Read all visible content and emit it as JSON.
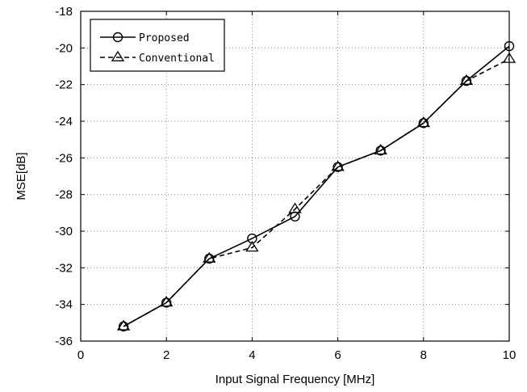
{
  "chart_data": {
    "type": "line",
    "title": "",
    "xlabel": "Input Signal Frequency [MHz]",
    "ylabel": "MSE[dB]",
    "xlim": [
      0,
      10
    ],
    "ylim": [
      -36,
      -18
    ],
    "xticks": [
      0,
      2,
      4,
      6,
      8,
      10
    ],
    "yticks": [
      -36,
      -34,
      -32,
      -30,
      -28,
      -26,
      -24,
      -22,
      -20,
      -18
    ],
    "grid": true,
    "legend_position": "top-left",
    "x": [
      1,
      2,
      3,
      4,
      5,
      6,
      7,
      8,
      9,
      10
    ],
    "series": [
      {
        "name": "Proposed",
        "values": [
          -35.2,
          -33.9,
          -31.5,
          -30.4,
          -29.2,
          -26.5,
          -25.6,
          -24.1,
          -21.8,
          -19.9
        ],
        "marker": "circle",
        "line_style": "solid",
        "color": "#000000"
      },
      {
        "name": "Conventional",
        "values": [
          -35.2,
          -33.9,
          -31.5,
          -30.9,
          -28.8,
          -26.5,
          -25.6,
          -24.1,
          -21.8,
          -20.6
        ],
        "marker": "triangle",
        "line_style": "dashed",
        "color": "#000000"
      }
    ]
  }
}
